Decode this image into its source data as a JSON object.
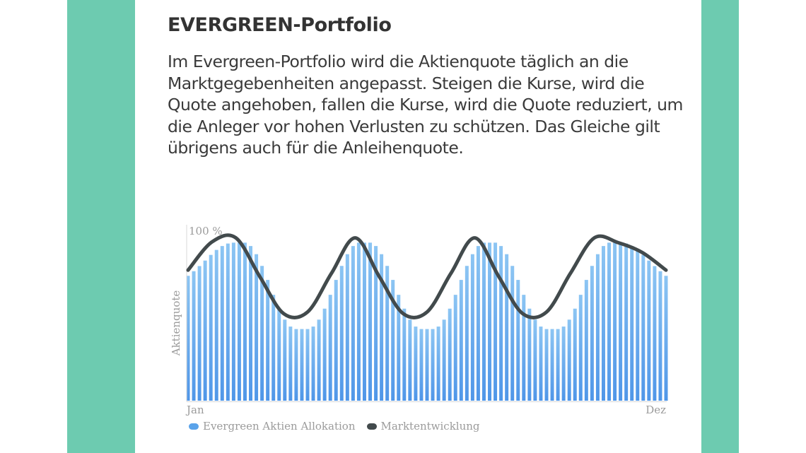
{
  "card": {
    "title": "EVERGREEN-Portfolio",
    "description": "Im Evergreen-Portfolio wird die Aktienquote täglich an die Marktgegebenheiten angepasst. Steigen die Kurse, wird die Quote angehoben, fallen die Kurse, wird die Quote reduziert, um die Anleger vor hohen Verlusten zu schützen. Das Gleiche gilt übrigens auch für die Anleihenquote."
  },
  "colors": {
    "frame_teal": "#6dcbb0",
    "bar_top": "#8cc5f3",
    "bar_bottom": "#4f96e8",
    "line": "#424a4c",
    "axis_text": "#9b9b9b"
  },
  "chart_data": {
    "type": "bar",
    "ylabel": "Aktienquote",
    "y_max_label": "100 %",
    "x_start_label": "Jan",
    "x_end_label": "Dez",
    "ylim": [
      0,
      100
    ],
    "grid": false,
    "legend_position": "bottom-left",
    "series": [
      {
        "name": "Evergreen Aktien Allokation",
        "kind": "bar",
        "values": [
          70.4,
          73.0,
          75.9,
          79.0,
          82.2,
          85.0,
          87.2,
          88.6,
          89.1,
          89.1,
          89.1,
          87.2,
          82.6,
          76.0,
          68.1,
          59.7,
          51.9,
          45.7,
          41.8,
          40.4,
          40.4,
          40.4,
          41.8,
          45.7,
          51.9,
          59.7,
          68.1,
          76.0,
          82.6,
          87.2,
          89.1,
          89.1,
          89.1,
          87.2,
          82.6,
          76.0,
          68.1,
          59.7,
          51.9,
          45.7,
          41.8,
          40.4,
          40.4,
          40.4,
          41.8,
          45.7,
          51.9,
          59.7,
          68.1,
          76.0,
          82.6,
          87.2,
          89.1,
          89.1,
          89.1,
          87.2,
          82.6,
          76.0,
          68.1,
          59.7,
          51.9,
          45.7,
          41.8,
          40.4,
          40.4,
          40.4,
          41.8,
          45.7,
          51.9,
          59.7,
          68.1,
          76.0,
          82.6,
          87.2,
          89.1,
          89.1,
          89.1,
          88.6,
          87.2,
          85.0,
          82.2,
          79.0,
          75.9,
          73.0,
          70.4
        ]
      },
      {
        "name": "Marktentwicklung",
        "kind": "line",
        "x": [
          0,
          0.05,
          0.1,
          0.15,
          0.2,
          0.25,
          0.3,
          0.35,
          0.4,
          0.45,
          0.5,
          0.55,
          0.6,
          0.65,
          0.7,
          0.75,
          0.8,
          0.85,
          0.9,
          0.95,
          1.0
        ],
        "values": [
          73.6,
          89.5,
          91.8,
          70.0,
          49.1,
          50.0,
          71.8,
          91.8,
          70.0,
          49.1,
          50.0,
          71.8,
          91.8,
          70.0,
          49.1,
          50.0,
          71.8,
          91.8,
          89.1,
          83.6,
          73.6
        ]
      }
    ]
  }
}
